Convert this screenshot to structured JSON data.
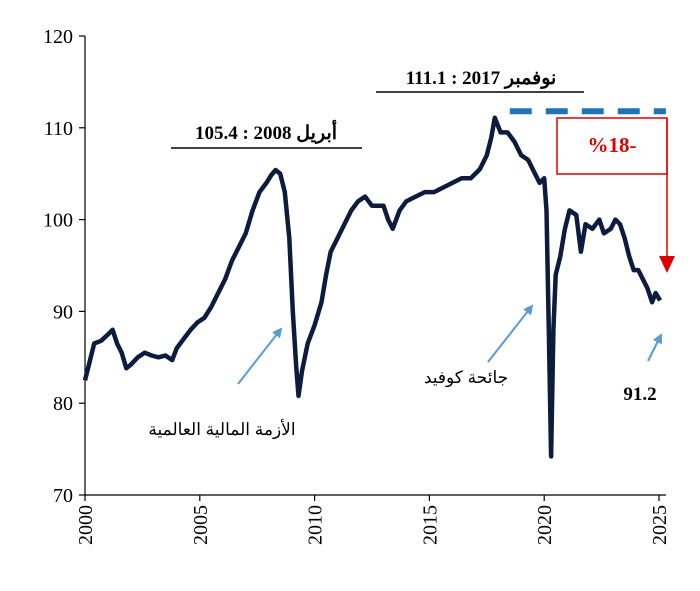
{
  "chart_data": {
    "type": "line",
    "title": "",
    "xlabel": "",
    "ylabel": "",
    "xlim": [
      2000,
      2025.3
    ],
    "ylim": [
      70,
      120
    ],
    "x_ticks": [
      "2000",
      "2005",
      "2010",
      "2015",
      "2020",
      "2025"
    ],
    "y_ticks": [
      "70",
      "80",
      "90",
      "100",
      "110",
      "120"
    ],
    "grid": false,
    "series": [
      {
        "color": "#0d1b3e",
        "points": [
          [
            2000.0,
            82.5
          ],
          [
            2000.2,
            84.5
          ],
          [
            2000.4,
            86.5
          ],
          [
            2000.7,
            86.8
          ],
          [
            2001.0,
            87.5
          ],
          [
            2001.2,
            88.0
          ],
          [
            2001.4,
            86.5
          ],
          [
            2001.6,
            85.5
          ],
          [
            2001.8,
            83.8
          ],
          [
            2002.0,
            84.2
          ],
          [
            2002.3,
            85.0
          ],
          [
            2002.6,
            85.5
          ],
          [
            2002.9,
            85.2
          ],
          [
            2003.2,
            85.0
          ],
          [
            2003.5,
            85.2
          ],
          [
            2003.8,
            84.7
          ],
          [
            2004.0,
            86.0
          ],
          [
            2004.3,
            87.0
          ],
          [
            2004.6,
            88.0
          ],
          [
            2004.9,
            88.8
          ],
          [
            2005.2,
            89.3
          ],
          [
            2005.5,
            90.5
          ],
          [
            2005.8,
            92.0
          ],
          [
            2006.1,
            93.5
          ],
          [
            2006.4,
            95.5
          ],
          [
            2006.7,
            97.0
          ],
          [
            2007.0,
            98.5
          ],
          [
            2007.3,
            101.0
          ],
          [
            2007.6,
            103.0
          ],
          [
            2007.9,
            104.0
          ],
          [
            2008.1,
            104.8
          ],
          [
            2008.3,
            105.4
          ],
          [
            2008.5,
            105.0
          ],
          [
            2008.7,
            103.0
          ],
          [
            2008.9,
            98.0
          ],
          [
            2009.05,
            90.0
          ],
          [
            2009.2,
            84.0
          ],
          [
            2009.3,
            80.8
          ],
          [
            2009.45,
            83.5
          ],
          [
            2009.7,
            86.5
          ],
          [
            2010.0,
            88.5
          ],
          [
            2010.3,
            91.0
          ],
          [
            2010.5,
            94.0
          ],
          [
            2010.7,
            96.5
          ],
          [
            2011.0,
            98.0
          ],
          [
            2011.3,
            99.5
          ],
          [
            2011.6,
            101.0
          ],
          [
            2011.9,
            102.0
          ],
          [
            2012.2,
            102.5
          ],
          [
            2012.5,
            101.5
          ],
          [
            2012.8,
            101.5
          ],
          [
            2013.0,
            101.5
          ],
          [
            2013.2,
            100.0
          ],
          [
            2013.4,
            99.0
          ],
          [
            2013.7,
            101.0
          ],
          [
            2014.0,
            102.0
          ],
          [
            2014.4,
            102.5
          ],
          [
            2014.8,
            103.0
          ],
          [
            2015.2,
            103.0
          ],
          [
            2015.6,
            103.5
          ],
          [
            2016.0,
            104.0
          ],
          [
            2016.4,
            104.5
          ],
          [
            2016.8,
            104.5
          ],
          [
            2017.2,
            105.5
          ],
          [
            2017.5,
            107.0
          ],
          [
            2017.7,
            109.0
          ],
          [
            2017.85,
            111.1
          ],
          [
            2018.1,
            109.5
          ],
          [
            2018.4,
            109.5
          ],
          [
            2018.7,
            108.5
          ],
          [
            2019.0,
            107.0
          ],
          [
            2019.3,
            106.5
          ],
          [
            2019.6,
            105.0
          ],
          [
            2019.8,
            104.0
          ],
          [
            2020.0,
            104.5
          ],
          [
            2020.1,
            101.0
          ],
          [
            2020.2,
            88.0
          ],
          [
            2020.3,
            74.2
          ],
          [
            2020.4,
            88.0
          ],
          [
            2020.5,
            94.0
          ],
          [
            2020.7,
            96.0
          ],
          [
            2020.9,
            99.0
          ],
          [
            2021.1,
            101.0
          ],
          [
            2021.4,
            100.5
          ],
          [
            2021.6,
            96.5
          ],
          [
            2021.8,
            99.5
          ],
          [
            2022.1,
            99.0
          ],
          [
            2022.4,
            100.0
          ],
          [
            2022.6,
            98.5
          ],
          [
            2022.9,
            99.0
          ],
          [
            2023.1,
            100.0
          ],
          [
            2023.3,
            99.5
          ],
          [
            2023.5,
            98.0
          ],
          [
            2023.7,
            96.0
          ],
          [
            2023.9,
            94.5
          ],
          [
            2024.1,
            94.5
          ],
          [
            2024.3,
            93.5
          ],
          [
            2024.5,
            92.5
          ],
          [
            2024.7,
            91.0
          ],
          [
            2024.85,
            92.0
          ],
          [
            2025.05,
            91.2
          ]
        ]
      }
    ],
    "reference_line": {
      "y": 111.8,
      "x_start": 2018.5,
      "x_end": 2025.3,
      "color": "#1f73b8",
      "style": "dashed"
    },
    "annotations": {
      "peak_2008": "أبريل 2008 : 105.4",
      "peak_2017": "نوفمبر 2017 : 111.1",
      "decline_pct": "%18-",
      "last_value": "91.2",
      "financial_crisis": "الأزمة المالية العالمية",
      "covid": "جائحة كوفيد"
    },
    "colors": {
      "line": "#0d1b3e",
      "arrow_blue": "#5b9bd5",
      "dashed_blue": "#1f73b8",
      "red": "#e00000"
    }
  }
}
